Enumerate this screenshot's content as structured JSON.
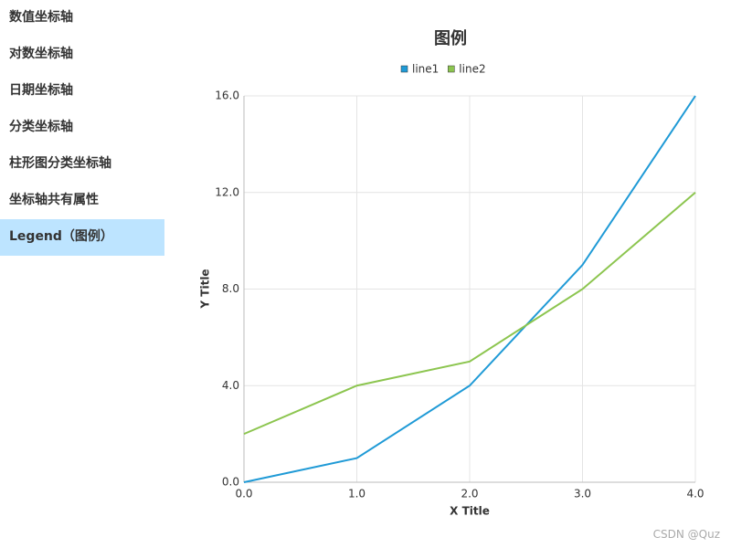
{
  "sidebar": {
    "items": [
      "数值坐标轴",
      "对数坐标轴",
      "日期坐标轴",
      "分类坐标轴",
      "柱形图分类坐标轴",
      "坐标轴共有属性",
      "Legend（图例）"
    ],
    "active": 6
  },
  "chart_data": {
    "type": "line",
    "title": "图例",
    "x_label": "X Title",
    "y_label": "Y Title",
    "x": [
      0,
      1,
      2,
      3,
      4
    ],
    "series": [
      {
        "name": "line1",
        "color": "#1f9ad6",
        "values": [
          0,
          1,
          4,
          9,
          16
        ]
      },
      {
        "name": "line2",
        "color": "#8cc54f",
        "values": [
          2,
          4,
          5,
          8,
          12
        ]
      }
    ],
    "xlim": [
      0,
      4
    ],
    "ylim": [
      0,
      16
    ],
    "xticks": [
      {
        "value": 0,
        "label": "0.0"
      },
      {
        "value": 1,
        "label": "1.0"
      },
      {
        "value": 2,
        "label": "2.0"
      },
      {
        "value": 3,
        "label": "3.0"
      },
      {
        "value": 4,
        "label": "4.0"
      }
    ],
    "yticks": [
      {
        "value": 0,
        "label": "0.0"
      },
      {
        "value": 4,
        "label": "4.0"
      },
      {
        "value": 8,
        "label": "8.0"
      },
      {
        "value": 12,
        "label": "12.0"
      },
      {
        "value": 16,
        "label": "16.0"
      }
    ],
    "grid": true,
    "legend": "top"
  },
  "watermark": "CSDN @Quz"
}
